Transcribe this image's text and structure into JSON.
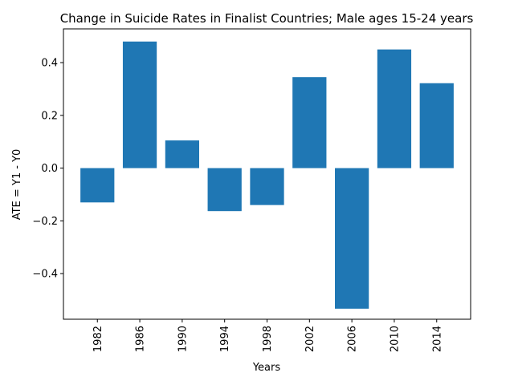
{
  "chart_data": {
    "type": "bar",
    "title": "Change in Suicide Rates in Finalist Countries; Male ages 15-24 years",
    "xlabel": "Years",
    "ylabel": "ATE = Y1 - Y0",
    "categories": [
      "1982",
      "1986",
      "1990",
      "1994",
      "1998",
      "2002",
      "2006",
      "2010",
      "2014"
    ],
    "x": [
      1982,
      1986,
      1990,
      1994,
      1998,
      2002,
      2006,
      2010,
      2014
    ],
    "values": [
      -0.13,
      0.48,
      0.105,
      -0.163,
      -0.14,
      0.345,
      -0.533,
      0.45,
      0.322
    ],
    "xlim": [
      1978.8,
      2017.2
    ],
    "ylim": [
      -0.573,
      0.528
    ],
    "yticks": [
      -0.4,
      -0.2,
      0.0,
      0.2,
      0.4
    ],
    "ytick_labels": [
      "−0.4",
      "−0.2",
      "0.0",
      "0.2",
      "0.4"
    ],
    "bar_color": "#1f77b4",
    "grid": false,
    "legend": "none"
  }
}
